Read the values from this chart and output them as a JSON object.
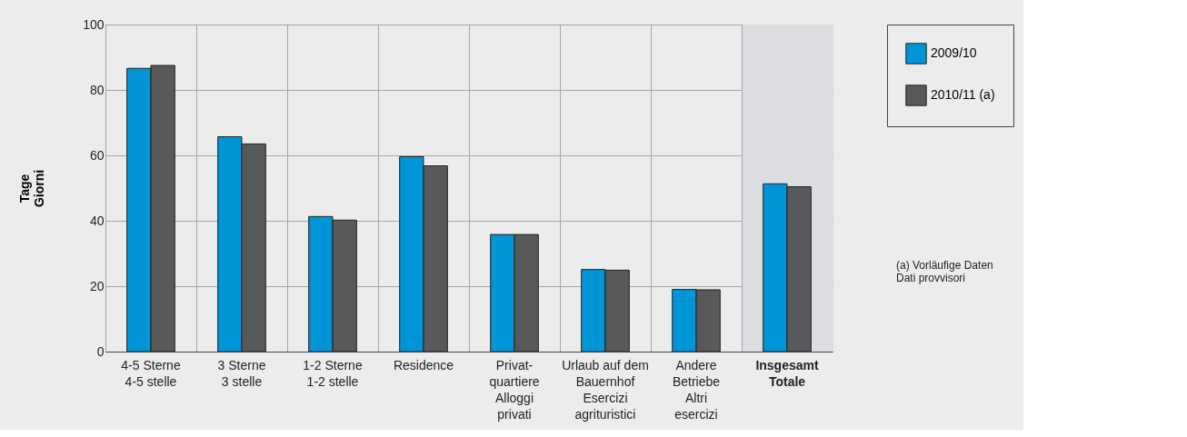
{
  "chart_data": {
    "type": "bar",
    "categories": [
      "4-5 Sterne\n\n4-5 stelle",
      "3 Sterne\n\n3 stelle",
      "1-2 Sterne\n\n1-2 stelle",
      "Residence",
      "Privat-\nquartiere\nAlloggi\nprivati",
      "Urlaub auf dem\nBauernhof\nEsercizi\nagrituristici",
      "Andere\nBetriebe\nAltri\nesercizi",
      "Insgesamt\n\nTotale"
    ],
    "ylabel": "Tage\nGiorni",
    "series": [
      {
        "name": "2009/10",
        "color": "#0095d6",
        "values": [
          86.6,
          65.7,
          41.3,
          59.6,
          35.8,
          25.1,
          19.0,
          51.3
        ]
      },
      {
        "name": "2010/11 (a)",
        "color": "#58595b",
        "values": [
          87.5,
          63.5,
          40.2,
          56.8,
          35.8,
          24.9,
          18.9,
          50.4
        ]
      }
    ],
    "ylim": [
      0,
      100
    ],
    "yticks": [
      0,
      20,
      40,
      60,
      80,
      100
    ],
    "bands": [
      {
        "axis": "x",
        "from": "Insgesamt\n\nTotale",
        "to": "Insgesamt\n\nTotale",
        "color": "#dcdde0"
      }
    ],
    "annotations": [
      "(a) Vorläufige Daten\nDati provvisori"
    ],
    "grid": true,
    "legend": "top right"
  }
}
